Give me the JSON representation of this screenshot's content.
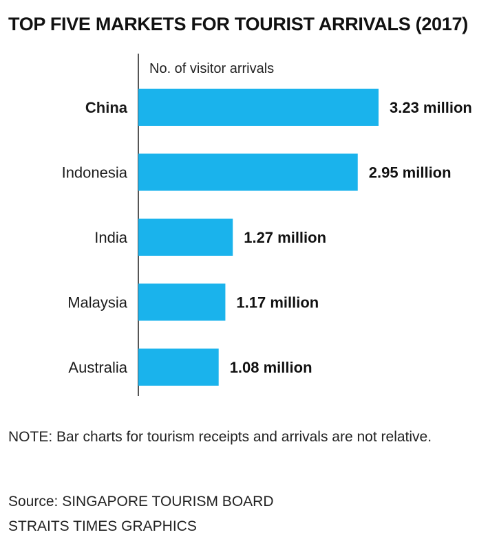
{
  "header": {
    "title": "TOP FIVE MARKETS FOR TOURIST ARRIVALS (2017)"
  },
  "chart_data": {
    "type": "bar",
    "orientation": "horizontal",
    "axis_label": "No. of visitor arrivals",
    "categories": [
      "China",
      "Indonesia",
      "India",
      "Malaysia",
      "Australia"
    ],
    "values": [
      3.23,
      2.95,
      1.27,
      1.17,
      1.08
    ],
    "value_labels": [
      "3.23 million",
      "2.95 million",
      "1.27 million",
      "1.17 million",
      "1.08 million"
    ],
    "highlighted_category": "China",
    "unit": "million",
    "xlim": [
      0,
      3.23
    ],
    "grid": false,
    "bar_color": "#1ab3ec",
    "axis_color": "#555555"
  },
  "footer": {
    "note": "NOTE: Bar charts for tourism receipts and arrivals are not relative.",
    "source_line1": "Source: SINGAPORE TOURISM BOARD",
    "source_line2": "STRAITS TIMES GRAPHICS"
  }
}
